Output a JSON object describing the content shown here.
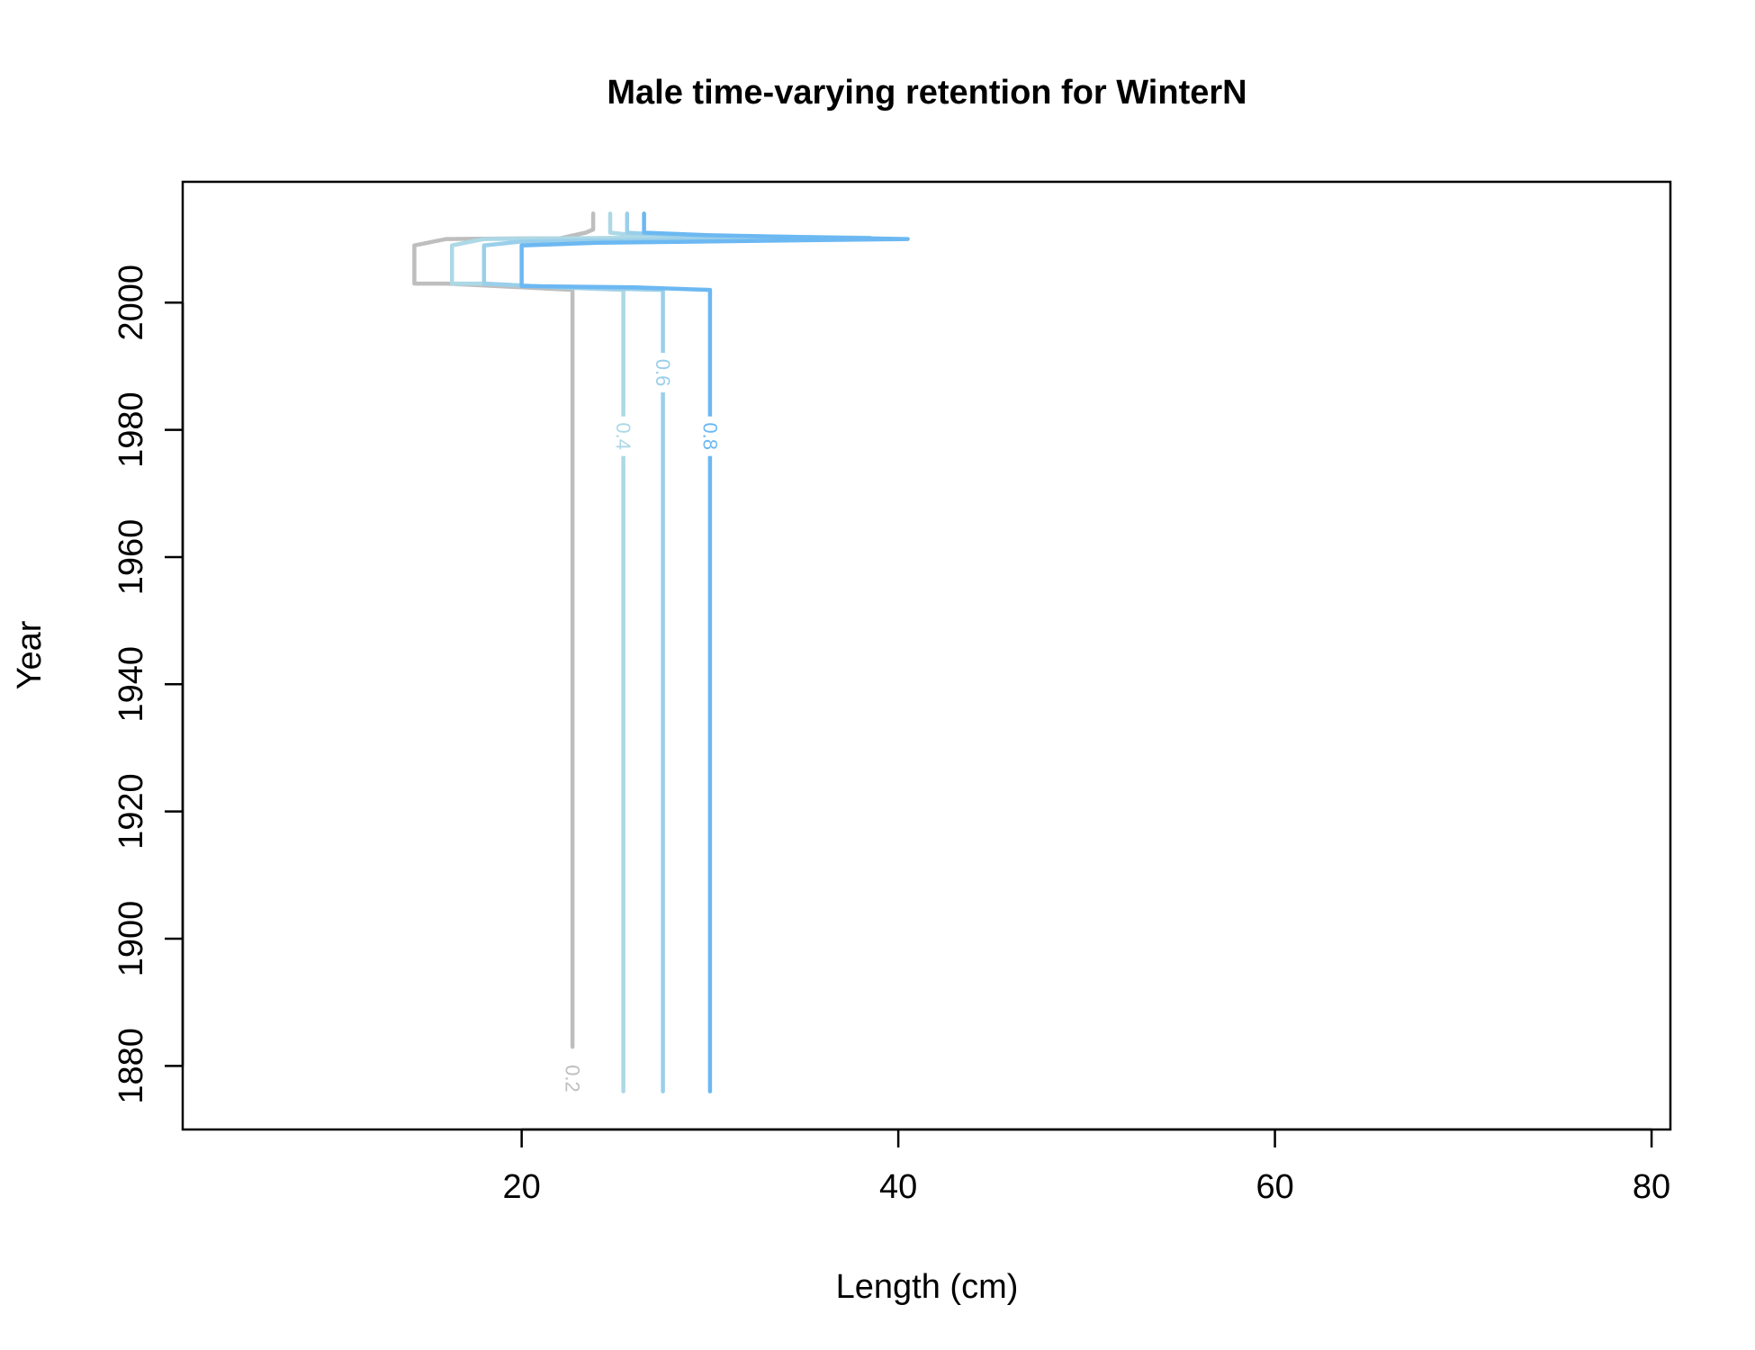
{
  "chart_data": {
    "type": "line",
    "subtype": "contour",
    "title": "Male time-varying retention for WinterN",
    "xlabel": "Length (cm)",
    "ylabel": "Year",
    "xlim": [
      2,
      81
    ],
    "ylim": [
      1870,
      2019
    ],
    "x_ticks": [
      20,
      40,
      60,
      80
    ],
    "y_ticks": [
      1880,
      1900,
      1920,
      1940,
      1960,
      1980,
      2000
    ],
    "grid": false,
    "legend": "none",
    "series": [
      {
        "name": "0.2",
        "color": "#BEBEBE",
        "label_at": {
          "x": 22.7,
          "y": 1878
        },
        "points": [
          [
            22.7,
            1883
          ],
          [
            22.7,
            2002
          ],
          [
            20,
            2002.4
          ],
          [
            16,
            2003
          ],
          [
            14.3,
            2003
          ],
          [
            14.3,
            2009
          ],
          [
            16,
            2010
          ],
          [
            20,
            2010.1
          ],
          [
            22,
            2010.1
          ],
          [
            23.4,
            2011
          ],
          [
            23.8,
            2011.5
          ],
          [
            23.8,
            2014
          ]
        ]
      },
      {
        "name": "0.4",
        "color": "#ADD8E6",
        "label_at": {
          "x": 25.4,
          "y": 1979
        },
        "points": [
          [
            25.4,
            1876
          ],
          [
            25.4,
            1975
          ],
          [
            25.4,
            1982
          ],
          [
            25.4,
            2002
          ],
          [
            22,
            2002.4
          ],
          [
            18,
            2003
          ],
          [
            16.3,
            2003
          ],
          [
            16.3,
            2009
          ],
          [
            18,
            2010
          ],
          [
            30,
            2010.3
          ],
          [
            26,
            2010.6
          ],
          [
            24.7,
            2011
          ],
          [
            24.7,
            2014
          ]
        ]
      },
      {
        "name": "0.6",
        "color": "#9ACFEA",
        "label_at": {
          "x": 27.5,
          "y": 1989
        },
        "points": [
          [
            27.5,
            1876
          ],
          [
            27.5,
            1985
          ],
          [
            27.5,
            1992
          ],
          [
            27.5,
            2002
          ],
          [
            22,
            2002.4
          ],
          [
            18,
            2003
          ],
          [
            18,
            2009
          ],
          [
            20,
            2009.6
          ],
          [
            38.5,
            2010.2
          ],
          [
            28,
            2010.6
          ],
          [
            25.6,
            2011
          ],
          [
            25.6,
            2014
          ]
        ]
      },
      {
        "name": "0.8",
        "color": "#6CB8F2",
        "label_at": {
          "x": 30,
          "y": 1979
        },
        "points": [
          [
            30,
            1876
          ],
          [
            30,
            1975
          ],
          [
            30,
            1982
          ],
          [
            30,
            2002
          ],
          [
            26,
            2002.4
          ],
          [
            20,
            2002.6
          ],
          [
            20,
            2009
          ],
          [
            24,
            2009.4
          ],
          [
            40.5,
            2010
          ],
          [
            30,
            2010.6
          ],
          [
            26.5,
            2011
          ],
          [
            26.5,
            2014
          ]
        ]
      }
    ]
  }
}
